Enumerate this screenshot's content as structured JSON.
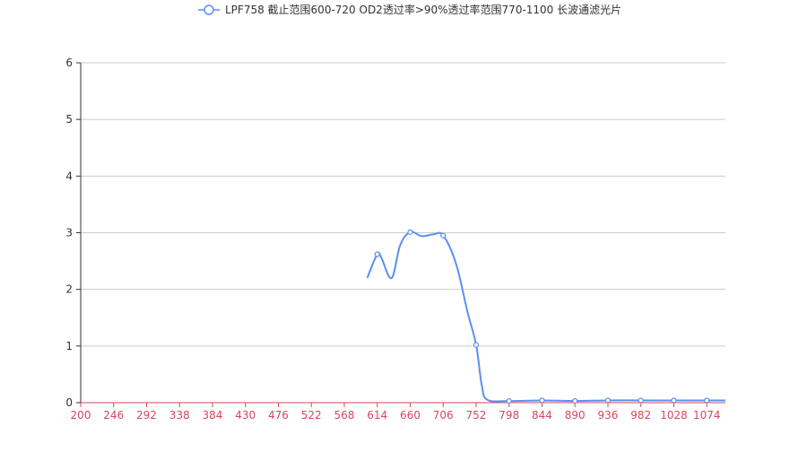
{
  "chart_data": {
    "type": "line",
    "title": "",
    "xlabel": "",
    "ylabel": "",
    "xlim": [
      200,
      1100
    ],
    "ylim": [
      0,
      6
    ],
    "x_ticks": [
      200,
      246,
      292,
      338,
      384,
      430,
      476,
      522,
      568,
      614,
      660,
      706,
      752,
      798,
      844,
      890,
      936,
      982,
      1028,
      1074
    ],
    "y_ticks": [
      0,
      1,
      2,
      3,
      4,
      5,
      6
    ],
    "grid": "horizontal",
    "legend_position": "top-center",
    "series": [
      {
        "name": "LPF758 截止范围600-720 OD2透过率>90%透过率范围770-1100 长波通滤光片",
        "color": "#5b8ff0",
        "smooth": true,
        "points": [
          [
            600,
            2.2
          ],
          [
            614,
            2.62
          ],
          [
            620,
            2.55
          ],
          [
            634,
            2.2
          ],
          [
            646,
            2.78
          ],
          [
            660,
            3.01
          ],
          [
            676,
            2.94
          ],
          [
            692,
            2.97
          ],
          [
            706,
            2.95
          ],
          [
            724,
            2.45
          ],
          [
            740,
            1.6
          ],
          [
            752,
            1.02
          ],
          [
            760,
            0.3
          ],
          [
            768,
            0.05
          ],
          [
            798,
            0.03
          ],
          [
            844,
            0.04
          ],
          [
            890,
            0.03
          ],
          [
            936,
            0.04
          ],
          [
            982,
            0.04
          ],
          [
            1028,
            0.04
          ],
          [
            1074,
            0.04
          ],
          [
            1100,
            0.04
          ]
        ],
        "markers": [
          [
            614,
            2.62
          ],
          [
            660,
            3.01
          ],
          [
            706,
            2.95
          ],
          [
            752,
            1.02
          ],
          [
            798,
            0.03
          ],
          [
            844,
            0.04
          ],
          [
            890,
            0.03
          ],
          [
            936,
            0.04
          ],
          [
            982,
            0.04
          ],
          [
            1028,
            0.04
          ],
          [
            1074,
            0.04
          ]
        ]
      }
    ],
    "colors": {
      "axis_x": "#d9455f",
      "axis_y": "#333333",
      "grid": "#cccccc",
      "tick_text_x": "#d9455f",
      "tick_text_y": "#333333"
    }
  }
}
